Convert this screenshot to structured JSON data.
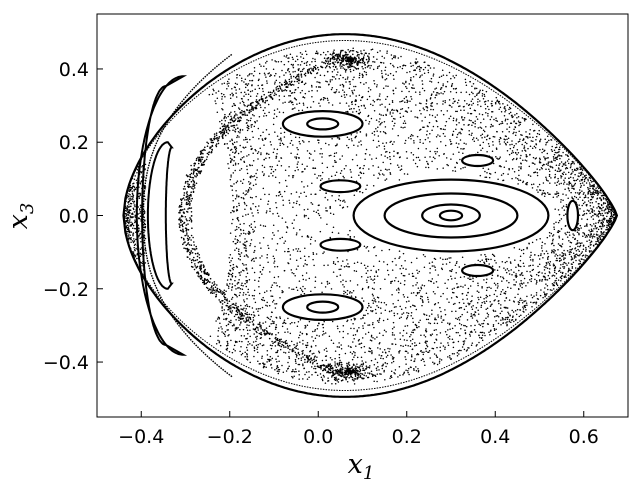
{
  "chart_data": {
    "type": "scatter",
    "title": "",
    "xlabel": "x",
    "xlabel_subscript": "1",
    "ylabel": "x",
    "ylabel_subscript": "3",
    "xlim": [
      -0.5,
      0.7
    ],
    "ylim": [
      -0.55,
      0.55
    ],
    "xticks": [
      -0.4,
      -0.2,
      0.0,
      0.2,
      0.4,
      0.6
    ],
    "xtick_labels": [
      "−0.4",
      "−0.2",
      "0.0",
      "0.2",
      "0.4",
      "0.6"
    ],
    "yticks": [
      -0.4,
      -0.2,
      0.0,
      0.2,
      0.4
    ],
    "ytick_labels": [
      "−0.4",
      "−0.2",
      "0.0",
      "0.2",
      "0.4"
    ],
    "tick_direction": "in",
    "grid": false,
    "legend": "none",
    "color": "#000000",
    "outer_boundary": {
      "x_min": -0.44,
      "x_max": 0.675,
      "y_extent": 0.495,
      "y_at_x_min": 0.0,
      "x_at_y_extent": 0.06
    },
    "closed_orbits": [
      {
        "name_hint": "central island",
        "center": [
          0.3,
          0.0
        ],
        "semi_axes": [
          [
            0.025,
            0.013
          ],
          [
            0.065,
            0.03
          ],
          [
            0.15,
            0.06
          ],
          [
            0.22,
            0.098
          ]
        ]
      },
      {
        "name_hint": "upper island",
        "center": [
          0.01,
          0.25
        ],
        "semi_axes": [
          [
            0.035,
            0.015
          ],
          [
            0.09,
            0.035
          ]
        ]
      },
      {
        "name_hint": "lower island",
        "center": [
          0.01,
          -0.25
        ],
        "semi_axes": [
          [
            0.035,
            0.015
          ],
          [
            0.09,
            0.035
          ]
        ]
      },
      {
        "name_hint": "upper small right",
        "center": [
          0.36,
          0.15
        ],
        "semi_axes": [
          [
            0.035,
            0.015
          ]
        ]
      },
      {
        "name_hint": "lower small right",
        "center": [
          0.36,
          -0.15
        ],
        "semi_axes": [
          [
            0.035,
            0.015
          ]
        ]
      },
      {
        "name_hint": "upper small left",
        "center": [
          0.05,
          0.08
        ],
        "semi_axes": [
          [
            0.045,
            0.016
          ]
        ]
      },
      {
        "name_hint": "lower small left",
        "center": [
          0.05,
          -0.08
        ],
        "semi_axes": [
          [
            0.045,
            0.016
          ]
        ]
      },
      {
        "name_hint": "far right",
        "center": [
          0.575,
          0.0
        ],
        "semi_axes": [
          [
            0.012,
            0.04
          ]
        ]
      }
    ],
    "crescents": [
      {
        "center": [
          -0.34,
          0.0
        ],
        "outer_radius": 0.045,
        "inner_radius": 0.015,
        "half_height": 0.2
      },
      {
        "center": [
          -0.305,
          0.0
        ],
        "outer_radius": 0.105,
        "inner_radius": 0.06,
        "half_height": 0.38
      }
    ],
    "stochastic_layer_points": 5200
  }
}
